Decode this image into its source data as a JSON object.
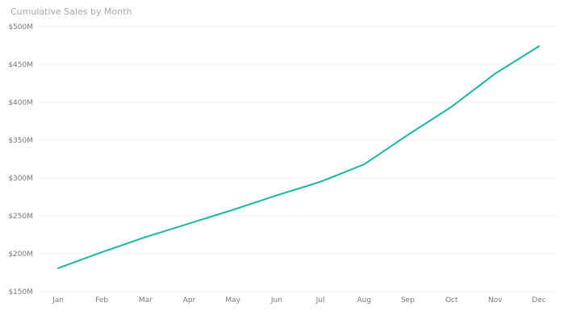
{
  "chart_data": {
    "type": "line",
    "title": "Cumulative Sales by Month",
    "categories": [
      "Jan",
      "Feb",
      "Mar",
      "Apr",
      "May",
      "Jun",
      "Jul",
      "Aug",
      "Sep",
      "Oct",
      "Nov",
      "Dec"
    ],
    "series": [
      {
        "values": [
          181,
          202,
          222,
          240,
          258,
          277,
          295,
          318,
          357,
          394,
          438,
          474
        ]
      }
    ],
    "ylim": [
      150,
      500
    ],
    "yticks": [
      150,
      200,
      250,
      300,
      350,
      400,
      450,
      500
    ],
    "ytick_labels": [
      "$150M",
      "$200M",
      "$250M",
      "$300M",
      "$350M",
      "$400M",
      "$450M",
      "$500M"
    ],
    "xlabel": "",
    "ylabel": "",
    "grid": true,
    "colors": {
      "line": "#1ab5a5",
      "gridline": "#ececec",
      "tick_text": "#777777",
      "title_text": "#a6a6a6"
    }
  }
}
